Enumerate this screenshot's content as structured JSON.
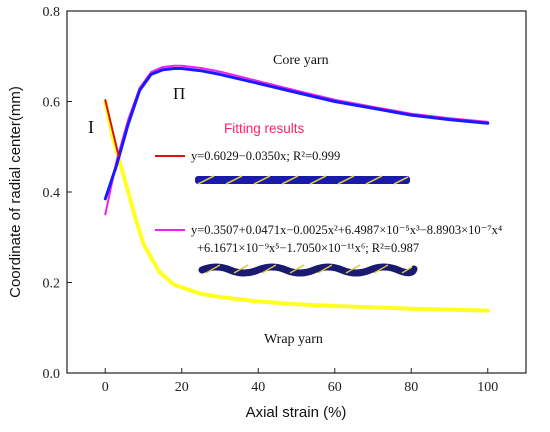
{
  "chart_data": {
    "type": "line",
    "xlabel": "Axial strain (%)",
    "ylabel": "Coordinate of radial center(mm)",
    "xlim": [
      -10,
      110
    ],
    "ylim": [
      0.0,
      0.8
    ],
    "xticks": [
      "0",
      "20",
      "40",
      "60",
      "80",
      "100"
    ],
    "yticks": [
      "0.0",
      "0.2",
      "0.4",
      "0.6",
      "0.8"
    ],
    "grid": false,
    "annotations": {
      "core_yarn": "Core yarn",
      "wrap_yarn": "Wrap yarn",
      "region_1": "I",
      "region_2": "Π",
      "fitting_title": "Fitting results",
      "equation_1": "y=0.6029−0.0350x; R²=0.999",
      "equation_2_line1": "y=0.3507+0.0471x−0.0025x²+6.4987×10⁻⁵x³−8.8903×10⁻⁷x⁴",
      "equation_2_line2": "+6.1671×10⁻⁹x⁵−1.7050×10⁻¹¹x⁶; R²=0.987"
    },
    "series": [
      {
        "name": "Core yarn",
        "color": "#1a1aff",
        "x": [
          0,
          3,
          6,
          9,
          12,
          15,
          18,
          20,
          25,
          30,
          40,
          50,
          60,
          70,
          80,
          90,
          100
        ],
        "y": [
          0.385,
          0.46,
          0.55,
          0.625,
          0.66,
          0.67,
          0.673,
          0.673,
          0.668,
          0.66,
          0.64,
          0.62,
          0.6,
          0.585,
          0.57,
          0.56,
          0.552
        ]
      },
      {
        "name": "Wrap yarn",
        "color": "#ffff22",
        "x": [
          0,
          2,
          4,
          6,
          8,
          10,
          14,
          18,
          25,
          30,
          40,
          50,
          60,
          70,
          80,
          90,
          100
        ],
        "y": [
          0.6,
          0.52,
          0.46,
          0.4,
          0.34,
          0.285,
          0.225,
          0.195,
          0.175,
          0.168,
          0.158,
          0.152,
          0.148,
          0.145,
          0.142,
          0.14,
          0.138
        ]
      },
      {
        "name": "Fit I",
        "color": "#dd1111",
        "x": [
          0,
          3.5
        ],
        "y": [
          0.6029,
          0.4804
        ]
      },
      {
        "name": "Fit II",
        "color": "#ee22ee",
        "x": [
          0,
          3,
          6,
          9,
          12,
          15,
          18,
          20,
          25,
          30,
          40,
          50,
          60,
          70,
          80,
          90,
          100
        ],
        "y": [
          0.3507,
          0.47,
          0.56,
          0.63,
          0.665,
          0.676,
          0.679,
          0.679,
          0.674,
          0.666,
          0.645,
          0.624,
          0.604,
          0.588,
          0.573,
          0.563,
          0.555
        ]
      }
    ]
  },
  "legend_colors": {
    "fit_1": "#dd1111",
    "fit_2": "#ee22ee",
    "fitting_title": "#ff2266",
    "region_1": "#dd1111",
    "region_2": "#ee22ee"
  }
}
